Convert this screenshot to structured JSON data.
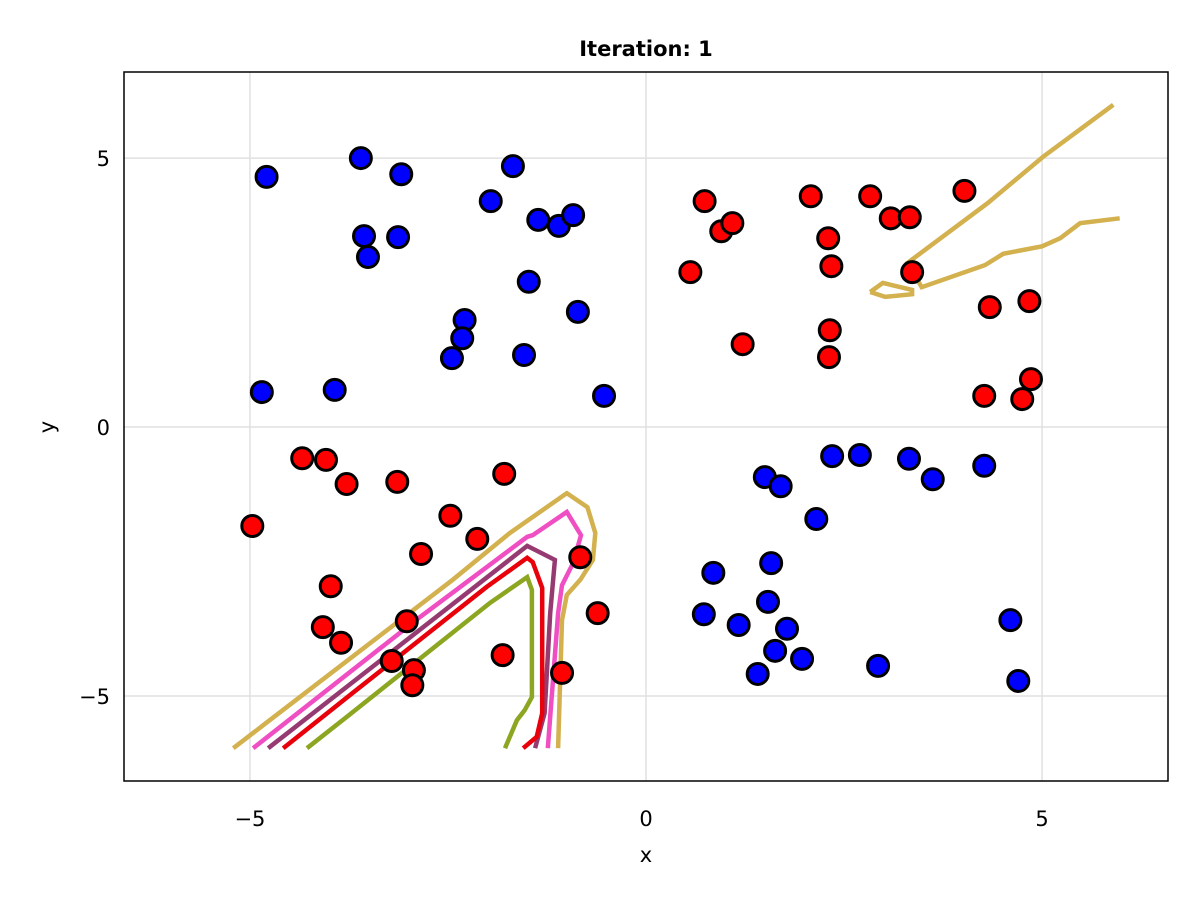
{
  "chart_data": {
    "type": "scatter",
    "title": "Iteration: 1",
    "xlabel": "x",
    "ylabel": "y",
    "xlim": [
      -6.59,
      6.59
    ],
    "ylim": [
      -6.58,
      6.6
    ],
    "xticks": [
      {
        "value": -5,
        "label": "−5"
      },
      {
        "value": 0,
        "label": "0"
      },
      {
        "value": 5,
        "label": "5"
      }
    ],
    "yticks": [
      {
        "value": -5,
        "label": "−5"
      },
      {
        "value": 0,
        "label": "0"
      },
      {
        "value": 5,
        "label": "5"
      }
    ],
    "grid": true,
    "series": [
      {
        "name": "blue",
        "color": "#0000ff",
        "points": [
          [
            -4.79,
            4.65
          ],
          [
            -3.6,
            5.0
          ],
          [
            -3.09,
            4.7
          ],
          [
            -3.56,
            3.55
          ],
          [
            -3.51,
            3.16
          ],
          [
            -3.13,
            3.53
          ],
          [
            -1.68,
            4.85
          ],
          [
            -1.96,
            4.2
          ],
          [
            -1.36,
            3.85
          ],
          [
            -1.1,
            3.74
          ],
          [
            -0.92,
            3.94
          ],
          [
            -1.48,
            2.7
          ],
          [
            -0.86,
            2.14
          ],
          [
            -2.29,
            1.99
          ],
          [
            -2.32,
            1.65
          ],
          [
            -2.45,
            1.28
          ],
          [
            -1.54,
            1.34
          ],
          [
            -0.53,
            0.58
          ],
          [
            -4.85,
            0.65
          ],
          [
            -3.93,
            0.69
          ],
          [
            1.5,
            -0.93
          ],
          [
            1.7,
            -1.1
          ],
          [
            2.35,
            -0.54
          ],
          [
            2.7,
            -0.52
          ],
          [
            3.32,
            -0.59
          ],
          [
            3.62,
            -0.97
          ],
          [
            4.27,
            -0.72
          ],
          [
            2.15,
            -1.71
          ],
          [
            0.85,
            -2.71
          ],
          [
            1.58,
            -2.53
          ],
          [
            0.73,
            -3.48
          ],
          [
            1.17,
            -3.68
          ],
          [
            1.54,
            -3.25
          ],
          [
            1.78,
            -3.75
          ],
          [
            1.63,
            -4.16
          ],
          [
            1.41,
            -4.59
          ],
          [
            1.97,
            -4.31
          ],
          [
            2.93,
            -4.44
          ],
          [
            4.6,
            -3.59
          ],
          [
            4.7,
            -4.72
          ]
        ]
      },
      {
        "name": "red",
        "color": "#ff0000",
        "points": [
          [
            0.74,
            4.2
          ],
          [
            0.95,
            3.64
          ],
          [
            1.09,
            3.79
          ],
          [
            2.08,
            4.29
          ],
          [
            2.83,
            4.29
          ],
          [
            3.09,
            3.88
          ],
          [
            3.33,
            3.9
          ],
          [
            4.02,
            4.39
          ],
          [
            0.56,
            2.88
          ],
          [
            2.3,
            3.51
          ],
          [
            2.34,
            2.99
          ],
          [
            3.36,
            2.88
          ],
          [
            4.34,
            2.23
          ],
          [
            4.84,
            2.34
          ],
          [
            2.32,
            1.8
          ],
          [
            2.31,
            1.3
          ],
          [
            1.22,
            1.54
          ],
          [
            4.27,
            0.58
          ],
          [
            4.75,
            0.52
          ],
          [
            4.86,
            0.89
          ],
          [
            -4.34,
            -0.58
          ],
          [
            -4.04,
            -0.61
          ],
          [
            -3.78,
            -1.06
          ],
          [
            -3.14,
            -1.02
          ],
          [
            -1.79,
            -0.87
          ],
          [
            -4.97,
            -1.84
          ],
          [
            -2.47,
            -1.65
          ],
          [
            -2.13,
            -2.08
          ],
          [
            -2.84,
            -2.36
          ],
          [
            -3.98,
            -2.96
          ],
          [
            -0.83,
            -2.42
          ],
          [
            -4.08,
            -3.72
          ],
          [
            -3.85,
            -4.01
          ],
          [
            -3.02,
            -3.61
          ],
          [
            -0.61,
            -3.46
          ],
          [
            -3.21,
            -4.35
          ],
          [
            -2.93,
            -4.52
          ],
          [
            -2.95,
            -4.8
          ],
          [
            -1.81,
            -4.24
          ],
          [
            -1.06,
            -4.57
          ]
        ]
      }
    ],
    "contours": [
      {
        "name": "gold-lower",
        "color": "#d3b14f",
        "points": [
          [
            -5.21,
            -5.97
          ],
          [
            -4.75,
            -5.45
          ],
          [
            -2.44,
            -2.84
          ],
          [
            -1.72,
            -1.97
          ],
          [
            -1.0,
            -1.23
          ],
          [
            -0.74,
            -1.49
          ],
          [
            -0.64,
            -1.97
          ],
          [
            -0.67,
            -2.47
          ],
          [
            -0.83,
            -2.84
          ],
          [
            -1.0,
            -3.12
          ],
          [
            -1.06,
            -3.59
          ],
          [
            -1.11,
            -5.97
          ]
        ]
      },
      {
        "name": "pink",
        "color": "#ef4fc3",
        "points": [
          [
            -4.96,
            -5.97
          ],
          [
            -2.85,
            -3.53
          ],
          [
            -1.5,
            -2.04
          ],
          [
            -1.43,
            -2.01
          ],
          [
            -1.0,
            -1.58
          ],
          [
            -0.82,
            -2.01
          ],
          [
            -0.92,
            -2.53
          ],
          [
            -1.06,
            -2.94
          ],
          [
            -1.11,
            -3.46
          ],
          [
            -1.24,
            -5.97
          ]
        ]
      },
      {
        "name": "purple",
        "color": "#963a72",
        "points": [
          [
            -4.77,
            -5.97
          ],
          [
            -1.5,
            -2.21
          ],
          [
            -1.15,
            -2.47
          ],
          [
            -1.21,
            -3.46
          ],
          [
            -1.28,
            -5.32
          ],
          [
            -1.4,
            -5.97
          ]
        ]
      },
      {
        "name": "red",
        "color": "#e8000b",
        "points": [
          [
            -4.58,
            -5.97
          ],
          [
            -3.7,
            -4.94
          ],
          [
            -2.01,
            -2.97
          ],
          [
            -1.5,
            -2.43
          ],
          [
            -1.43,
            -2.51
          ],
          [
            -1.31,
            -2.99
          ],
          [
            -1.31,
            -5.32
          ],
          [
            -1.38,
            -5.76
          ],
          [
            -1.55,
            -5.97
          ]
        ]
      },
      {
        "name": "olive",
        "color": "#8ca622",
        "points": [
          [
            -4.28,
            -5.97
          ],
          [
            -3.78,
            -5.39
          ],
          [
            -1.97,
            -3.27
          ],
          [
            -1.5,
            -2.79
          ],
          [
            -1.44,
            -3.03
          ],
          [
            -1.44,
            -5.02
          ],
          [
            -1.53,
            -5.26
          ],
          [
            -1.63,
            -5.45
          ],
          [
            -1.78,
            -5.97
          ]
        ]
      },
      {
        "name": "gold-upper",
        "color": "#d3b14f",
        "points": [
          [
            5.9,
            5.99
          ],
          [
            5.01,
            5.02
          ],
          [
            4.31,
            4.16
          ],
          [
            3.3,
            3.05
          ],
          [
            3.48,
            2.6
          ],
          [
            4.28,
            3.01
          ],
          [
            4.51,
            3.22
          ],
          [
            5.0,
            3.36
          ],
          [
            5.23,
            3.51
          ],
          [
            5.48,
            3.79
          ],
          [
            5.98,
            3.88
          ]
        ]
      },
      {
        "name": "gold-loop",
        "color": "#d3b14f",
        "points": [
          [
            2.83,
            2.51
          ],
          [
            2.99,
            2.68
          ],
          [
            3.36,
            2.55
          ],
          [
            3.36,
            2.47
          ],
          [
            3.02,
            2.42
          ],
          [
            2.83,
            2.51
          ]
        ]
      }
    ]
  }
}
